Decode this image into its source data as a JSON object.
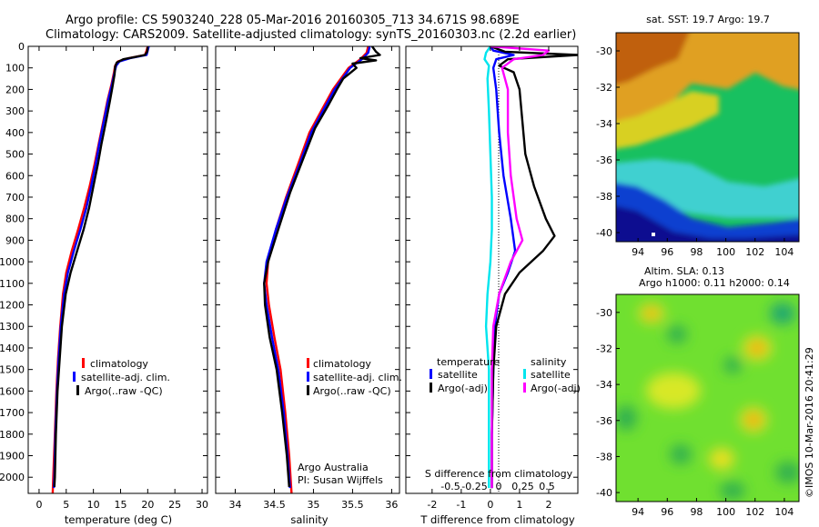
{
  "header": {
    "title_line1": "Argo profile: CS 5903240_228 05-Mar-2016 20160305_713 34.671S 98.689E",
    "title_line2": "Climatology: CARS2009. Satellite-adjusted climatology: synTS_20160303.nc (2.2d earlier)"
  },
  "colors": {
    "climatology": "#ff0000",
    "satellite_adj": "#0000ff",
    "argo": "#000000",
    "salinity_satellite": "#00e5ee",
    "salinity_argo": "#ff00ff"
  },
  "chart_data": [
    {
      "type": "line",
      "id": "temperature",
      "xlabel": "temperature (deg C)",
      "xlim": [
        -2,
        31
      ],
      "xticks": [
        "0",
        "5",
        "10",
        "15",
        "20",
        "25",
        "30"
      ],
      "ylim": [
        2075,
        0
      ],
      "yticks": [
        "0",
        "100",
        "200",
        "300",
        "400",
        "500",
        "600",
        "700",
        "800",
        "900",
        "1000",
        "1100",
        "1200",
        "1300",
        "1400",
        "1500",
        "1600",
        "1700",
        "1800",
        "1900",
        "2000"
      ],
      "legend": {
        "placement": "lower-middle",
        "entries": [
          "climatology",
          "satellite-adj. clim.",
          "Argo(..raw -QC)"
        ]
      },
      "series": [
        {
          "name": "climatology",
          "color": "#ff0000",
          "points": [
            [
              20.0,
              0
            ],
            [
              19.8,
              20
            ],
            [
              19.5,
              40
            ],
            [
              16.5,
              55
            ],
            [
              14.5,
              70
            ],
            [
              14.0,
              90
            ],
            [
              13.8,
              120
            ],
            [
              13.3,
              180
            ],
            [
              12.6,
              250
            ],
            [
              11.8,
              350
            ],
            [
              11.0,
              450
            ],
            [
              10.2,
              550
            ],
            [
              9.3,
              650
            ],
            [
              8.3,
              750
            ],
            [
              7.2,
              850
            ],
            [
              6.0,
              950
            ],
            [
              5.0,
              1050
            ],
            [
              4.4,
              1150
            ],
            [
              3.9,
              1300
            ],
            [
              3.5,
              1450
            ],
            [
              3.2,
              1600
            ],
            [
              2.9,
              1800
            ],
            [
              2.6,
              2000
            ],
            [
              2.5,
              2075
            ]
          ]
        },
        {
          "name": "satellite-adj. clim.",
          "color": "#0000ff",
          "points": [
            [
              20.2,
              0
            ],
            [
              20.0,
              20
            ],
            [
              19.8,
              40
            ],
            [
              16.8,
              55
            ],
            [
              14.8,
              70
            ],
            [
              14.2,
              90
            ],
            [
              13.9,
              120
            ],
            [
              13.4,
              180
            ],
            [
              12.7,
              250
            ],
            [
              11.9,
              350
            ],
            [
              11.1,
              450
            ],
            [
              10.4,
              550
            ],
            [
              9.6,
              650
            ],
            [
              8.7,
              750
            ],
            [
              7.6,
              850
            ],
            [
              6.4,
              950
            ],
            [
              5.3,
              1050
            ],
            [
              4.6,
              1150
            ],
            [
              4.0,
              1300
            ],
            [
              3.6,
              1450
            ],
            [
              3.3,
              1600
            ],
            [
              3.0,
              1800
            ],
            [
              2.8,
              2000
            ],
            [
              2.7,
              2050
            ]
          ]
        },
        {
          "name": "Argo(..raw -QC)",
          "color": "#000000",
          "points": [
            [
              20.0,
              5
            ],
            [
              19.9,
              25
            ],
            [
              19.5,
              40
            ],
            [
              17.5,
              50
            ],
            [
              15.5,
              60
            ],
            [
              14.3,
              75
            ],
            [
              14.0,
              95
            ],
            [
              13.9,
              130
            ],
            [
              13.5,
              190
            ],
            [
              13.0,
              260
            ],
            [
              12.3,
              350
            ],
            [
              11.5,
              450
            ],
            [
              10.8,
              550
            ],
            [
              10.0,
              650
            ],
            [
              9.2,
              750
            ],
            [
              8.2,
              850
            ],
            [
              7.0,
              950
            ],
            [
              5.8,
              1050
            ],
            [
              4.9,
              1150
            ],
            [
              4.2,
              1300
            ],
            [
              3.8,
              1450
            ],
            [
              3.4,
              1600
            ],
            [
              3.1,
              1800
            ],
            [
              2.9,
              2000
            ],
            [
              2.8,
              2045
            ]
          ]
        }
      ]
    },
    {
      "type": "line",
      "id": "salinity",
      "xlabel": "salinity",
      "xlim": [
        33.75,
        36.1
      ],
      "xticks": [
        "34",
        "34.5",
        "35",
        "35.5",
        "36"
      ],
      "ylim": [
        2075,
        0
      ],
      "legend": {
        "placement": "lower-right",
        "entries": [
          "climatology",
          "satellite-adj. clim.",
          "Argo(..raw -QC)"
        ]
      },
      "annotation": [
        "Argo Australia",
        "PI: Susan Wijffels"
      ],
      "series": [
        {
          "name": "climatology",
          "color": "#ff0000",
          "points": [
            [
              35.7,
              0
            ],
            [
              35.68,
              30
            ],
            [
              35.6,
              60
            ],
            [
              35.45,
              100
            ],
            [
              35.35,
              150
            ],
            [
              35.25,
              200
            ],
            [
              35.1,
              300
            ],
            [
              34.95,
              400
            ],
            [
              34.8,
              550
            ],
            [
              34.65,
              700
            ],
            [
              34.52,
              850
            ],
            [
              34.42,
              1000
            ],
            [
              34.4,
              1100
            ],
            [
              34.43,
              1200
            ],
            [
              34.5,
              1350
            ],
            [
              34.58,
              1500
            ],
            [
              34.64,
              1700
            ],
            [
              34.69,
              1900
            ],
            [
              34.72,
              2075
            ]
          ]
        },
        {
          "name": "satellite-adj. clim.",
          "color": "#0000ff",
          "points": [
            [
              35.72,
              0
            ],
            [
              35.7,
              30
            ],
            [
              35.62,
              60
            ],
            [
              35.47,
              100
            ],
            [
              35.37,
              150
            ],
            [
              35.27,
              200
            ],
            [
              35.12,
              300
            ],
            [
              34.97,
              400
            ],
            [
              34.82,
              550
            ],
            [
              34.66,
              700
            ],
            [
              34.52,
              850
            ],
            [
              34.4,
              1000
            ],
            [
              34.37,
              1100
            ],
            [
              34.4,
              1200
            ],
            [
              34.47,
              1350
            ],
            [
              34.55,
              1500
            ],
            [
              34.62,
              1700
            ],
            [
              34.67,
              1900
            ],
            [
              34.7,
              2050
            ]
          ]
        },
        {
          "name": "Argo(..raw -QC)",
          "color": "#000000",
          "points": [
            [
              35.75,
              0
            ],
            [
              35.8,
              25
            ],
            [
              35.85,
              40
            ],
            [
              35.6,
              55
            ],
            [
              35.8,
              65
            ],
            [
              35.5,
              80
            ],
            [
              35.55,
              100
            ],
            [
              35.38,
              150
            ],
            [
              35.3,
              200
            ],
            [
              35.18,
              280
            ],
            [
              35.02,
              380
            ],
            [
              34.86,
              530
            ],
            [
              34.7,
              680
            ],
            [
              34.55,
              850
            ],
            [
              34.42,
              1000
            ],
            [
              34.37,
              1100
            ],
            [
              34.38,
              1200
            ],
            [
              34.44,
              1350
            ],
            [
              34.53,
              1500
            ],
            [
              34.6,
              1700
            ],
            [
              34.66,
              1900
            ],
            [
              34.69,
              2045
            ]
          ]
        }
      ]
    },
    {
      "type": "line",
      "id": "difference",
      "xlabel_top": "S difference from climatology",
      "xticks_top": [
        "-0.5",
        "-0.25",
        "0",
        "0.25",
        "0.5"
      ],
      "xlabel": "T difference from climatology",
      "xlim": [
        -2.9,
        3.0
      ],
      "xticks": [
        "-2",
        "-1",
        "0",
        "1",
        "2"
      ],
      "ylim": [
        2075,
        0
      ],
      "legend": {
        "placement": "lower-middle",
        "temperature_header": "temperature",
        "salinity_header": "salinity",
        "entries": [
          "satellite",
          "Argo(-adj)",
          "satellite",
          "Argo(-adj)"
        ]
      },
      "series": [
        {
          "name": "T satellite",
          "color": "#0000ff",
          "points": [
            [
              0,
              0
            ],
            [
              0.1,
              20
            ],
            [
              0.8,
              40
            ],
            [
              0.2,
              60
            ],
            [
              0.1,
              100
            ],
            [
              0.2,
              200
            ],
            [
              0.3,
              400
            ],
            [
              0.45,
              600
            ],
            [
              0.7,
              800
            ],
            [
              0.85,
              950
            ],
            [
              0.6,
              1050
            ],
            [
              0.3,
              1150
            ],
            [
              0.15,
              1300
            ],
            [
              0.1,
              1500
            ],
            [
              0.05,
              1800
            ],
            [
              0.05,
              2050
            ]
          ]
        },
        {
          "name": "T Argo(-adj)",
          "color": "#000000",
          "points": [
            [
              0,
              0
            ],
            [
              0.5,
              25
            ],
            [
              3.0,
              40
            ],
            [
              0.6,
              60
            ],
            [
              0.3,
              90
            ],
            [
              0.8,
              120
            ],
            [
              1.0,
              200
            ],
            [
              1.1,
              350
            ],
            [
              1.2,
              500
            ],
            [
              1.5,
              650
            ],
            [
              1.9,
              800
            ],
            [
              2.2,
              880
            ],
            [
              1.8,
              950
            ],
            [
              1.0,
              1050
            ],
            [
              0.5,
              1150
            ],
            [
              0.2,
              1300
            ],
            [
              0.1,
              1500
            ],
            [
              0.05,
              1800
            ],
            [
              0.05,
              2050
            ]
          ]
        },
        {
          "name": "S satellite",
          "color": "#00e5ee",
          "points": [
            [
              0,
              0
            ],
            [
              -0.15,
              30
            ],
            [
              -0.2,
              60
            ],
            [
              -0.05,
              90
            ],
            [
              -0.1,
              150
            ],
            [
              -0.05,
              300
            ],
            [
              0.0,
              500
            ],
            [
              0.05,
              700
            ],
            [
              0.05,
              850
            ],
            [
              0.0,
              1000
            ],
            [
              -0.1,
              1150
            ],
            [
              -0.15,
              1300
            ],
            [
              -0.05,
              1500
            ],
            [
              -0.05,
              1800
            ],
            [
              -0.05,
              2050
            ]
          ]
        },
        {
          "name": "S Argo(-adj)",
          "color": "#ff00ff",
          "points": [
            [
              0,
              0
            ],
            [
              2.0,
              20
            ],
            [
              1.8,
              40
            ],
            [
              0.8,
              60
            ],
            [
              0.4,
              100
            ],
            [
              0.6,
              200
            ],
            [
              0.6,
              400
            ],
            [
              0.7,
              600
            ],
            [
              0.9,
              800
            ],
            [
              1.1,
              900
            ],
            [
              0.7,
              1000
            ],
            [
              0.3,
              1150
            ],
            [
              0.1,
              1300
            ],
            [
              0.05,
              1500
            ],
            [
              0.05,
              1800
            ],
            [
              0.05,
              2050
            ]
          ]
        }
      ]
    },
    {
      "type": "heatmap",
      "id": "sst-map",
      "title": "sat. SST: 19.7  Argo: 19.7",
      "xlim": [
        92.5,
        105
      ],
      "ylim": [
        -40.5,
        -29
      ],
      "xticks": [
        "94",
        "96",
        "98",
        "100",
        "102",
        "104"
      ],
      "yticks": [
        "-30",
        "-32",
        "-34",
        "-36",
        "-38",
        "-40"
      ]
    },
    {
      "type": "heatmap",
      "id": "sla-map",
      "title_line1": "Altim. SLA: 0.13",
      "title_line2": "Argo h1000: 0.11 h2000: 0.14",
      "xlim": [
        92.5,
        105
      ],
      "ylim": [
        -40.5,
        -29
      ],
      "xticks": [
        "94",
        "96",
        "98",
        "100",
        "102",
        "104"
      ],
      "yticks": [
        "-30",
        "-32",
        "-34",
        "-36",
        "-38",
        "-40"
      ]
    }
  ],
  "stamp": "©IMOS 10-Mar-2016 20:41:29"
}
